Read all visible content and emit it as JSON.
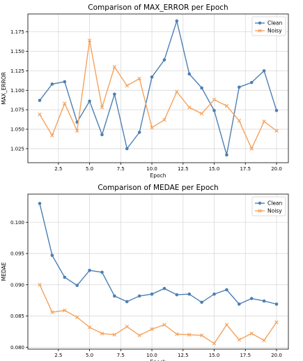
{
  "colors": {
    "clean": "#4c7fb3",
    "noisy": "#f5a25d"
  },
  "chart_data": [
    {
      "type": "line",
      "title": "Comparison of MAX_ERROR per Epoch",
      "xlabel": "Epoch",
      "ylabel": "MAX_ERROR",
      "xlim": [
        0.05,
        20.95
      ],
      "ylim": [
        1.007,
        1.198
      ],
      "xticks": [
        "2.5",
        "5.0",
        "7.5",
        "10.0",
        "12.5",
        "15.0",
        "17.5",
        "20.0"
      ],
      "yticks": [
        "1.025",
        "1.050",
        "1.075",
        "1.100",
        "1.125",
        "1.150",
        "1.175"
      ],
      "grid": true,
      "legend_position": "top-right",
      "x": [
        1,
        2,
        3,
        4,
        5,
        6,
        7,
        8,
        9,
        10,
        11,
        12,
        13,
        14,
        15,
        16,
        17,
        18,
        19,
        20
      ],
      "series": [
        {
          "name": "Clean",
          "marker": "circle",
          "color_key": "clean",
          "values": [
            1.087,
            1.108,
            1.111,
            1.059,
            1.086,
            1.043,
            1.095,
            1.025,
            1.046,
            1.117,
            1.139,
            1.189,
            1.121,
            1.103,
            1.074,
            1.017,
            1.104,
            1.11,
            1.125,
            1.074
          ]
        },
        {
          "name": "Noisy",
          "marker": "x",
          "color_key": "noisy",
          "values": [
            1.069,
            1.042,
            1.083,
            1.048,
            1.164,
            1.078,
            1.13,
            1.106,
            1.115,
            1.052,
            1.062,
            1.098,
            1.078,
            1.07,
            1.088,
            1.08,
            1.061,
            1.025,
            1.06,
            1.048
          ]
        }
      ]
    },
    {
      "type": "line",
      "title": "Comparison of MEDAE per Epoch",
      "xlabel": "Epoch",
      "ylabel": "MEDAE",
      "xlim": [
        0.05,
        20.95
      ],
      "ylim": [
        0.0797,
        0.1045
      ],
      "xticks": [
        "2.5",
        "5.0",
        "7.5",
        "10.0",
        "12.5",
        "15.0",
        "17.5",
        "20.0"
      ],
      "yticks": [
        "0.080",
        "0.085",
        "0.090",
        "0.095",
        "0.100"
      ],
      "grid": true,
      "legend_position": "top-right",
      "x": [
        1,
        2,
        3,
        4,
        5,
        6,
        7,
        8,
        9,
        10,
        11,
        12,
        13,
        14,
        15,
        16,
        17,
        18,
        19,
        20
      ],
      "series": [
        {
          "name": "Clean",
          "marker": "circle",
          "color_key": "clean",
          "values": [
            0.103,
            0.0947,
            0.0912,
            0.0899,
            0.0923,
            0.092,
            0.0882,
            0.0873,
            0.0882,
            0.0885,
            0.0894,
            0.0884,
            0.0885,
            0.0872,
            0.0885,
            0.0892,
            0.0869,
            0.0878,
            0.0874,
            0.0869
          ]
        },
        {
          "name": "Noisy",
          "marker": "x",
          "color_key": "noisy",
          "values": [
            0.09,
            0.0856,
            0.0859,
            0.0848,
            0.0832,
            0.0822,
            0.082,
            0.0833,
            0.0819,
            0.0829,
            0.0836,
            0.0821,
            0.082,
            0.0819,
            0.0806,
            0.0836,
            0.0812,
            0.0822,
            0.0811,
            0.084
          ]
        }
      ]
    }
  ]
}
